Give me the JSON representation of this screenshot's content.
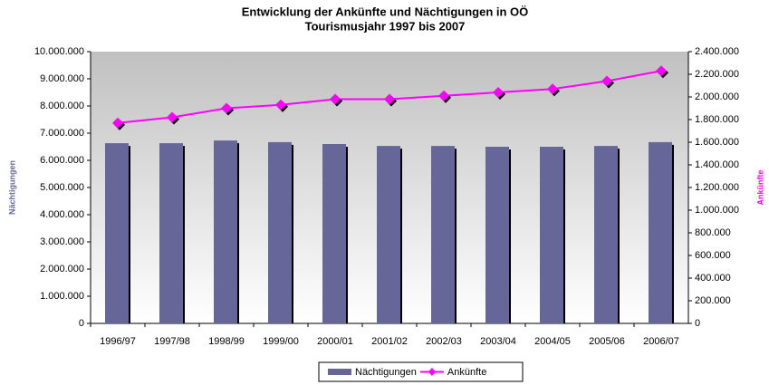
{
  "chart_data": {
    "type": "bar_line",
    "title": [
      "Entwicklung der Ankünfte und Nächtigungen in OÖ",
      "Tourismusjahr 1997 bis 2007"
    ],
    "y_label": "Nächtigungen",
    "y2_label": "Ankünfte",
    "categories": [
      "1996/97",
      "1997/98",
      "1998/99",
      "1999/00",
      "2000/01",
      "2001/02",
      "2002/03",
      "2003/04",
      "2004/05",
      "2005/06",
      "2006/07"
    ],
    "series": [
      {
        "name": "Nächtigungen",
        "type": "bar",
        "color": "#666699",
        "axis": "y",
        "values": [
          6630000,
          6630000,
          6730000,
          6670000,
          6600000,
          6530000,
          6530000,
          6500000,
          6500000,
          6530000,
          6670000
        ]
      },
      {
        "name": "Ankünfte",
        "type": "line",
        "color": "#ff00ff",
        "axis": "y2",
        "values": [
          1770000,
          1820000,
          1900000,
          1930000,
          1980000,
          1980000,
          2010000,
          2040000,
          2070000,
          2140000,
          2230000
        ]
      }
    ],
    "ylim": [
      0,
      10000000
    ],
    "yticks": [
      0,
      {
        "value": 1000000,
        "label": "1.000.000"
      },
      {
        "value": 2000000,
        "label": "2.000.000"
      },
      {
        "value": 3000000,
        "label": "3.000.000"
      },
      {
        "value": 4000000,
        "label": "4.000.000"
      },
      {
        "value": 5000000,
        "label": "5.000.000"
      },
      {
        "value": 6000000,
        "label": "6.000.000"
      },
      {
        "value": 7000000,
        "label": "7.000.000"
      },
      {
        "value": 8000000,
        "label": "8.000.000"
      },
      {
        "value": 9000000,
        "label": "9.000.000"
      },
      {
        "value": 10000000,
        "label": "10.000.000"
      }
    ],
    "y2lim": [
      0,
      2400000
    ],
    "y2ticks": [
      0,
      {
        "value": 200000,
        "label": "200.000"
      },
      {
        "value": 400000,
        "label": "400.000"
      },
      {
        "value": 600000,
        "label": "600.000"
      },
      {
        "value": 800000,
        "label": "800.000"
      },
      {
        "value": 1000000,
        "label": "1.000.000"
      },
      {
        "value": 1200000,
        "label": "1.200.000"
      },
      {
        "value": 1400000,
        "label": "1.400.000"
      },
      {
        "value": 1600000,
        "label": "1.600.000"
      },
      {
        "value": 1800000,
        "label": "1.800.000"
      },
      {
        "value": 2000000,
        "label": "2.000.000"
      },
      {
        "value": 2200000,
        "label": "2.200.000"
      },
      {
        "value": 2400000,
        "label": "2.400.000"
      }
    ],
    "legend": "bottom"
  }
}
